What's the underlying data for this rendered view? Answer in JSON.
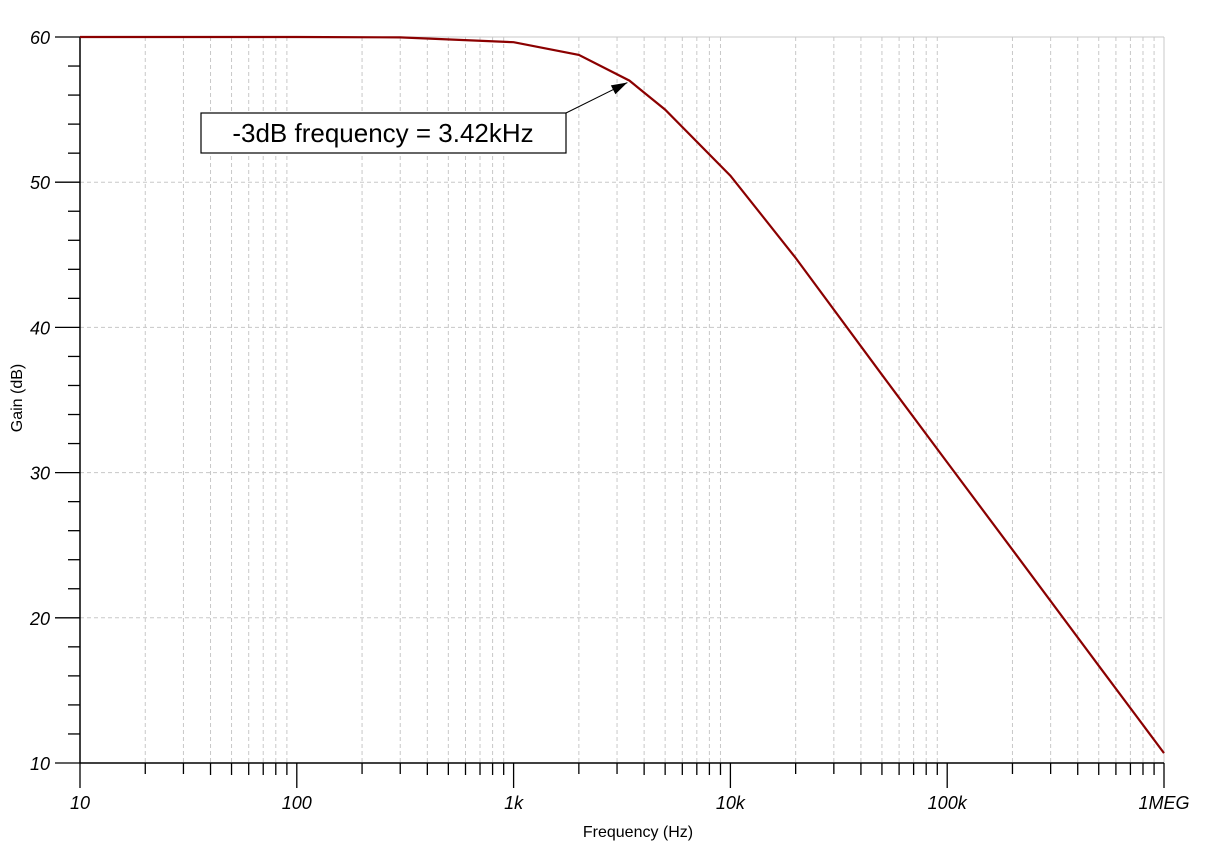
{
  "chart_data": {
    "type": "line",
    "title": "",
    "xlabel": "Frequency (Hz)",
    "ylabel": "Gain (dB)",
    "xscale": "log",
    "xlim": [
      10,
      1000000
    ],
    "ylim": [
      10,
      60
    ],
    "x_ticks": [
      10,
      100,
      1000,
      10000,
      100000,
      1000000
    ],
    "x_tick_labels": [
      "10",
      "100",
      "1k",
      "10k",
      "100k",
      "1MEG"
    ],
    "y_ticks": [
      10,
      20,
      30,
      40,
      50,
      60
    ],
    "y_tick_labels": [
      "10",
      "20",
      "30",
      "40",
      "50",
      "60"
    ],
    "grid": true,
    "series": [
      {
        "name": "Gain",
        "color": "#8b0000",
        "x": [
          10,
          100,
          300,
          1000,
          2000,
          3420,
          5000,
          10000,
          20000,
          50000,
          100000,
          200000,
          500000,
          1000000
        ],
        "y": [
          60.0,
          60.0,
          59.97,
          59.64,
          58.77,
          57.0,
          55.0,
          50.45,
          44.78,
          36.74,
          30.7,
          24.68,
          16.7,
          10.68
        ]
      }
    ],
    "annotation": {
      "text": "-3dB frequency = 3.42kHz",
      "x": 3420,
      "y": 57
    }
  }
}
